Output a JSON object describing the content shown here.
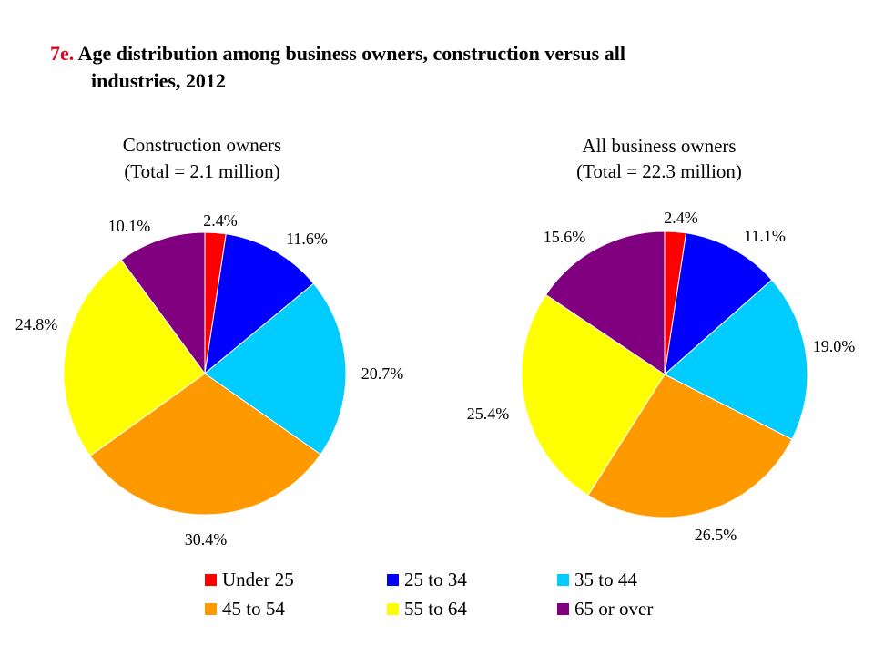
{
  "title": {
    "number": "7e.",
    "line1": "Age distribution among business owners, construction versus all",
    "line2": "industries, 2012"
  },
  "legend": [
    {
      "label": "Under 25",
      "color": "#ff0000"
    },
    {
      "label": "25 to 34",
      "color": "#0000ff"
    },
    {
      "label": "35 to 44",
      "color": "#00ccff"
    },
    {
      "label": "45 to 54",
      "color": "#ff9900"
    },
    {
      "label": "55 to 64",
      "color": "#ffff00"
    },
    {
      "label": "65 or over",
      "color": "#800080"
    }
  ],
  "chart_data": [
    {
      "type": "pie",
      "title": "Construction owners",
      "subtitle": "(Total = 2.1 million)",
      "categories": [
        "Under 25",
        "25 to 34",
        "35 to 44",
        "45 to 54",
        "55 to 64",
        "65 or over"
      ],
      "values": [
        2.4,
        11.6,
        20.7,
        30.4,
        24.8,
        10.1
      ],
      "labels": [
        "2.4%",
        "11.6%",
        "20.7%",
        "30.4%",
        "24.8%",
        "10.1%"
      ],
      "colors": [
        "#ff0000",
        "#0000ff",
        "#00ccff",
        "#ff9900",
        "#ffff00",
        "#800080"
      ]
    },
    {
      "type": "pie",
      "title": "All business owners",
      "subtitle": "(Total = 22.3 million)",
      "categories": [
        "Under 25",
        "25 to 34",
        "35 to 44",
        "45 to 54",
        "55 to 64",
        "65 or over"
      ],
      "values": [
        2.4,
        11.1,
        19.0,
        26.5,
        25.4,
        15.6
      ],
      "labels": [
        "2.4%",
        "11.1%",
        "19.0%",
        "26.5%",
        "25.4%",
        "15.6%"
      ],
      "colors": [
        "#ff0000",
        "#0000ff",
        "#00ccff",
        "#ff9900",
        "#ffff00",
        "#800080"
      ]
    }
  ]
}
